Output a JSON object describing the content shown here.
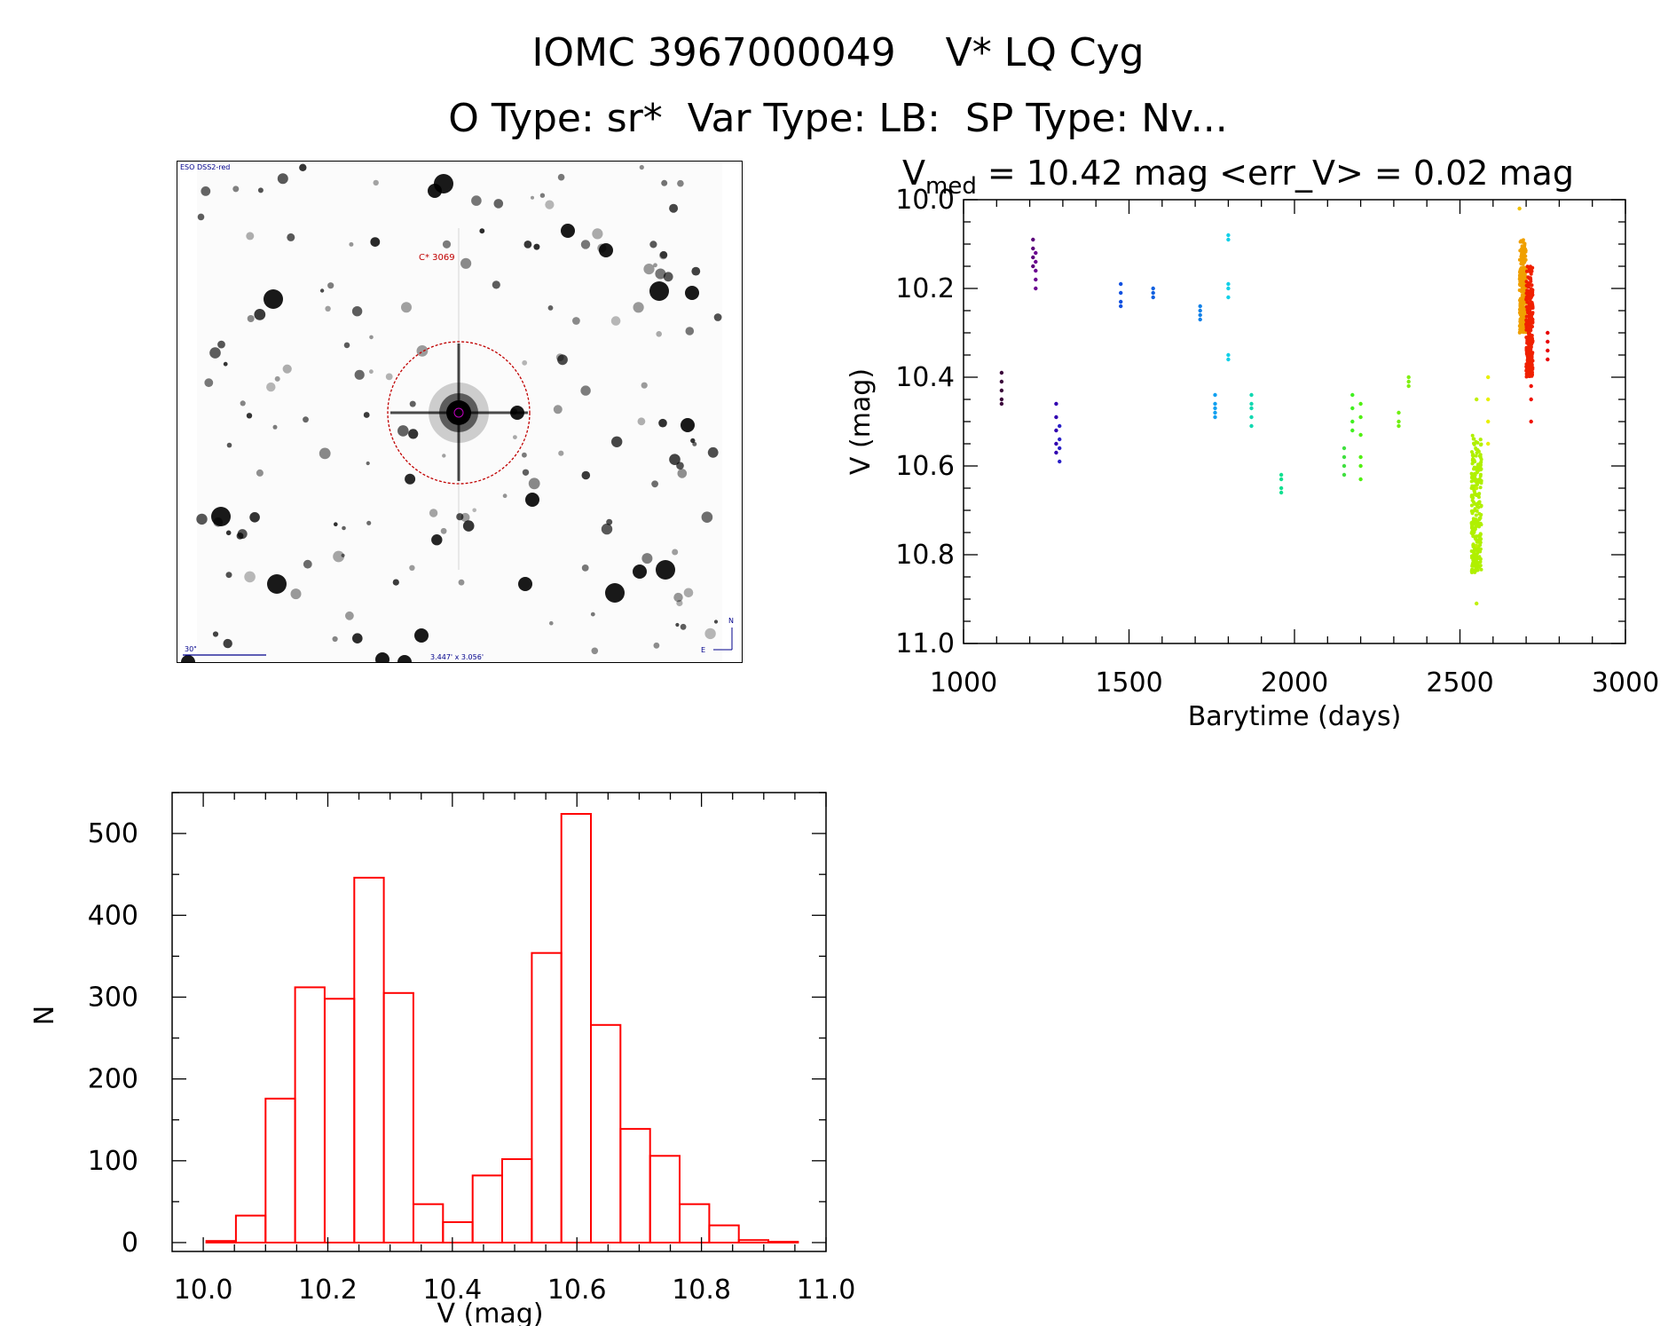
{
  "title_line1": "IOMC 3967000049    V* LQ Cyg",
  "title_line2": "O Type: sr*  Var Type: LB:  SP Type: Nv...",
  "finder": {
    "survey": "ESO DSS2-red",
    "object_label": "C* 3069",
    "scale_label": "30\"",
    "fov_label": "3.447' x 3.056'",
    "north": "N",
    "east": "E"
  },
  "chart_data": [
    {
      "type": "scatter",
      "title_main": "V",
      "title_sub": "med",
      "title_rest": " = 10.42 mag <err_V> = 0.02 mag",
      "xlabel": "Barytime (days)",
      "ylabel": "V (mag)",
      "xlim": [
        1000,
        3000
      ],
      "ylim": [
        11.0,
        10.0
      ],
      "y_inverted": true,
      "xticks": [
        1000,
        1500,
        2000,
        2500,
        3000
      ],
      "yticks": [
        "10.0",
        "10.2",
        "10.4",
        "10.6",
        "10.8",
        "11.0"
      ],
      "point_color": "time-gradient (dark purple -> blue -> cyan -> green -> yellow -> orange -> red)",
      "groups": [
        {
          "x": 1115,
          "y": [
            10.39,
            10.41,
            10.43,
            10.45,
            10.46
          ],
          "color": "#3a003a"
        },
        {
          "x": 1210,
          "y": [
            10.09,
            10.11,
            10.13,
            10.15
          ],
          "color": "#5a007a"
        },
        {
          "x": 1218,
          "y": [
            10.12,
            10.14,
            10.16,
            10.18,
            10.2
          ],
          "color": "#6a0090"
        },
        {
          "x": 1280,
          "y": [
            10.46,
            10.49,
            10.52,
            10.55,
            10.57
          ],
          "color": "#3000b0"
        },
        {
          "x": 1290,
          "y": [
            10.51,
            10.54,
            10.56,
            10.59
          ],
          "color": "#2a20c8"
        },
        {
          "x": 1475,
          "y": [
            10.19,
            10.21,
            10.23,
            10.24
          ],
          "color": "#1050e0"
        },
        {
          "x": 1573,
          "y": [
            10.2,
            10.21,
            10.22
          ],
          "color": "#1060e0"
        },
        {
          "x": 1715,
          "y": [
            10.24,
            10.25,
            10.26,
            10.27
          ],
          "color": "#1080e8"
        },
        {
          "x": 1760,
          "y": [
            10.44,
            10.46,
            10.47,
            10.48,
            10.49
          ],
          "color": "#10a0f0"
        },
        {
          "x": 1800,
          "y": [
            10.08,
            10.09,
            10.19,
            10.2,
            10.22,
            10.35,
            10.36
          ],
          "color": "#10d0e8"
        },
        {
          "x": 1870,
          "y": [
            10.44,
            10.46,
            10.47,
            10.49,
            10.51
          ],
          "color": "#10d8b0"
        },
        {
          "x": 1960,
          "y": [
            10.62,
            10.63,
            10.65,
            10.66
          ],
          "color": "#10e090"
        },
        {
          "x": 2150,
          "y": [
            10.56,
            10.58,
            10.6,
            10.62
          ],
          "color": "#40e040"
        },
        {
          "x": 2175,
          "y": [
            10.44,
            10.47,
            10.5,
            10.52
          ],
          "color": "#40f020"
        },
        {
          "x": 2200,
          "y": [
            10.46,
            10.49,
            10.53,
            10.58,
            10.6,
            10.63
          ],
          "color": "#50f010"
        },
        {
          "x": 2315,
          "y": [
            10.48,
            10.5,
            10.51
          ],
          "color": "#70f010"
        },
        {
          "x": 2345,
          "y": [
            10.4,
            10.41,
            10.42
          ],
          "color": "#80f010"
        },
        {
          "x": [
            2535,
            2565
          ],
          "y": [
            10.53,
            10.84
          ],
          "color": "#b0f000",
          "dense": true
        },
        {
          "x": 2550,
          "y": [
            10.91,
            10.78,
            10.65,
            10.45
          ],
          "color": "#c0f000"
        },
        {
          "x": 2585,
          "y": [
            10.4,
            10.45,
            10.5,
            10.55
          ],
          "color": "#e8f000"
        },
        {
          "x": [
            2680,
            2700
          ],
          "y": [
            10.09,
            10.3
          ],
          "color": "#f0a000",
          "dense": true
        },
        {
          "x": 2680,
          "y": [
            10.02
          ],
          "color": "#f0c000"
        },
        {
          "x": [
            2700,
            2720
          ],
          "y": [
            10.15,
            10.4
          ],
          "color": "#f02000",
          "dense": true
        },
        {
          "x": 2715,
          "y": [
            10.45,
            10.5,
            10.42
          ],
          "color": "#f01000"
        },
        {
          "x": 2765,
          "y": [
            10.3,
            10.32,
            10.34,
            10.36
          ],
          "color": "#e80000"
        }
      ]
    },
    {
      "type": "bar",
      "xlabel": "V (mag)",
      "ylabel": "N",
      "xlim": [
        10.0,
        11.0
      ],
      "ylim": [
        0,
        550
      ],
      "xticks": [
        "10.0",
        "10.2",
        "10.4",
        "10.6",
        "10.8",
        "11.0"
      ],
      "yticks": [
        "0",
        "100",
        "200",
        "300",
        "400",
        "500"
      ],
      "bin_width": 0.0475,
      "bin_left_edges": [
        10.005,
        10.0525,
        10.1,
        10.1475,
        10.195,
        10.2425,
        10.29,
        10.3375,
        10.385,
        10.4325,
        10.48,
        10.5275,
        10.575,
        10.6225,
        10.67,
        10.7175,
        10.765,
        10.8125,
        10.86,
        10.9075
      ],
      "values": [
        2,
        33,
        176,
        312,
        298,
        446,
        305,
        47,
        25,
        82,
        102,
        354,
        524,
        266,
        139,
        106,
        47,
        21,
        3,
        1
      ],
      "bar_color": "#ff0000"
    }
  ]
}
